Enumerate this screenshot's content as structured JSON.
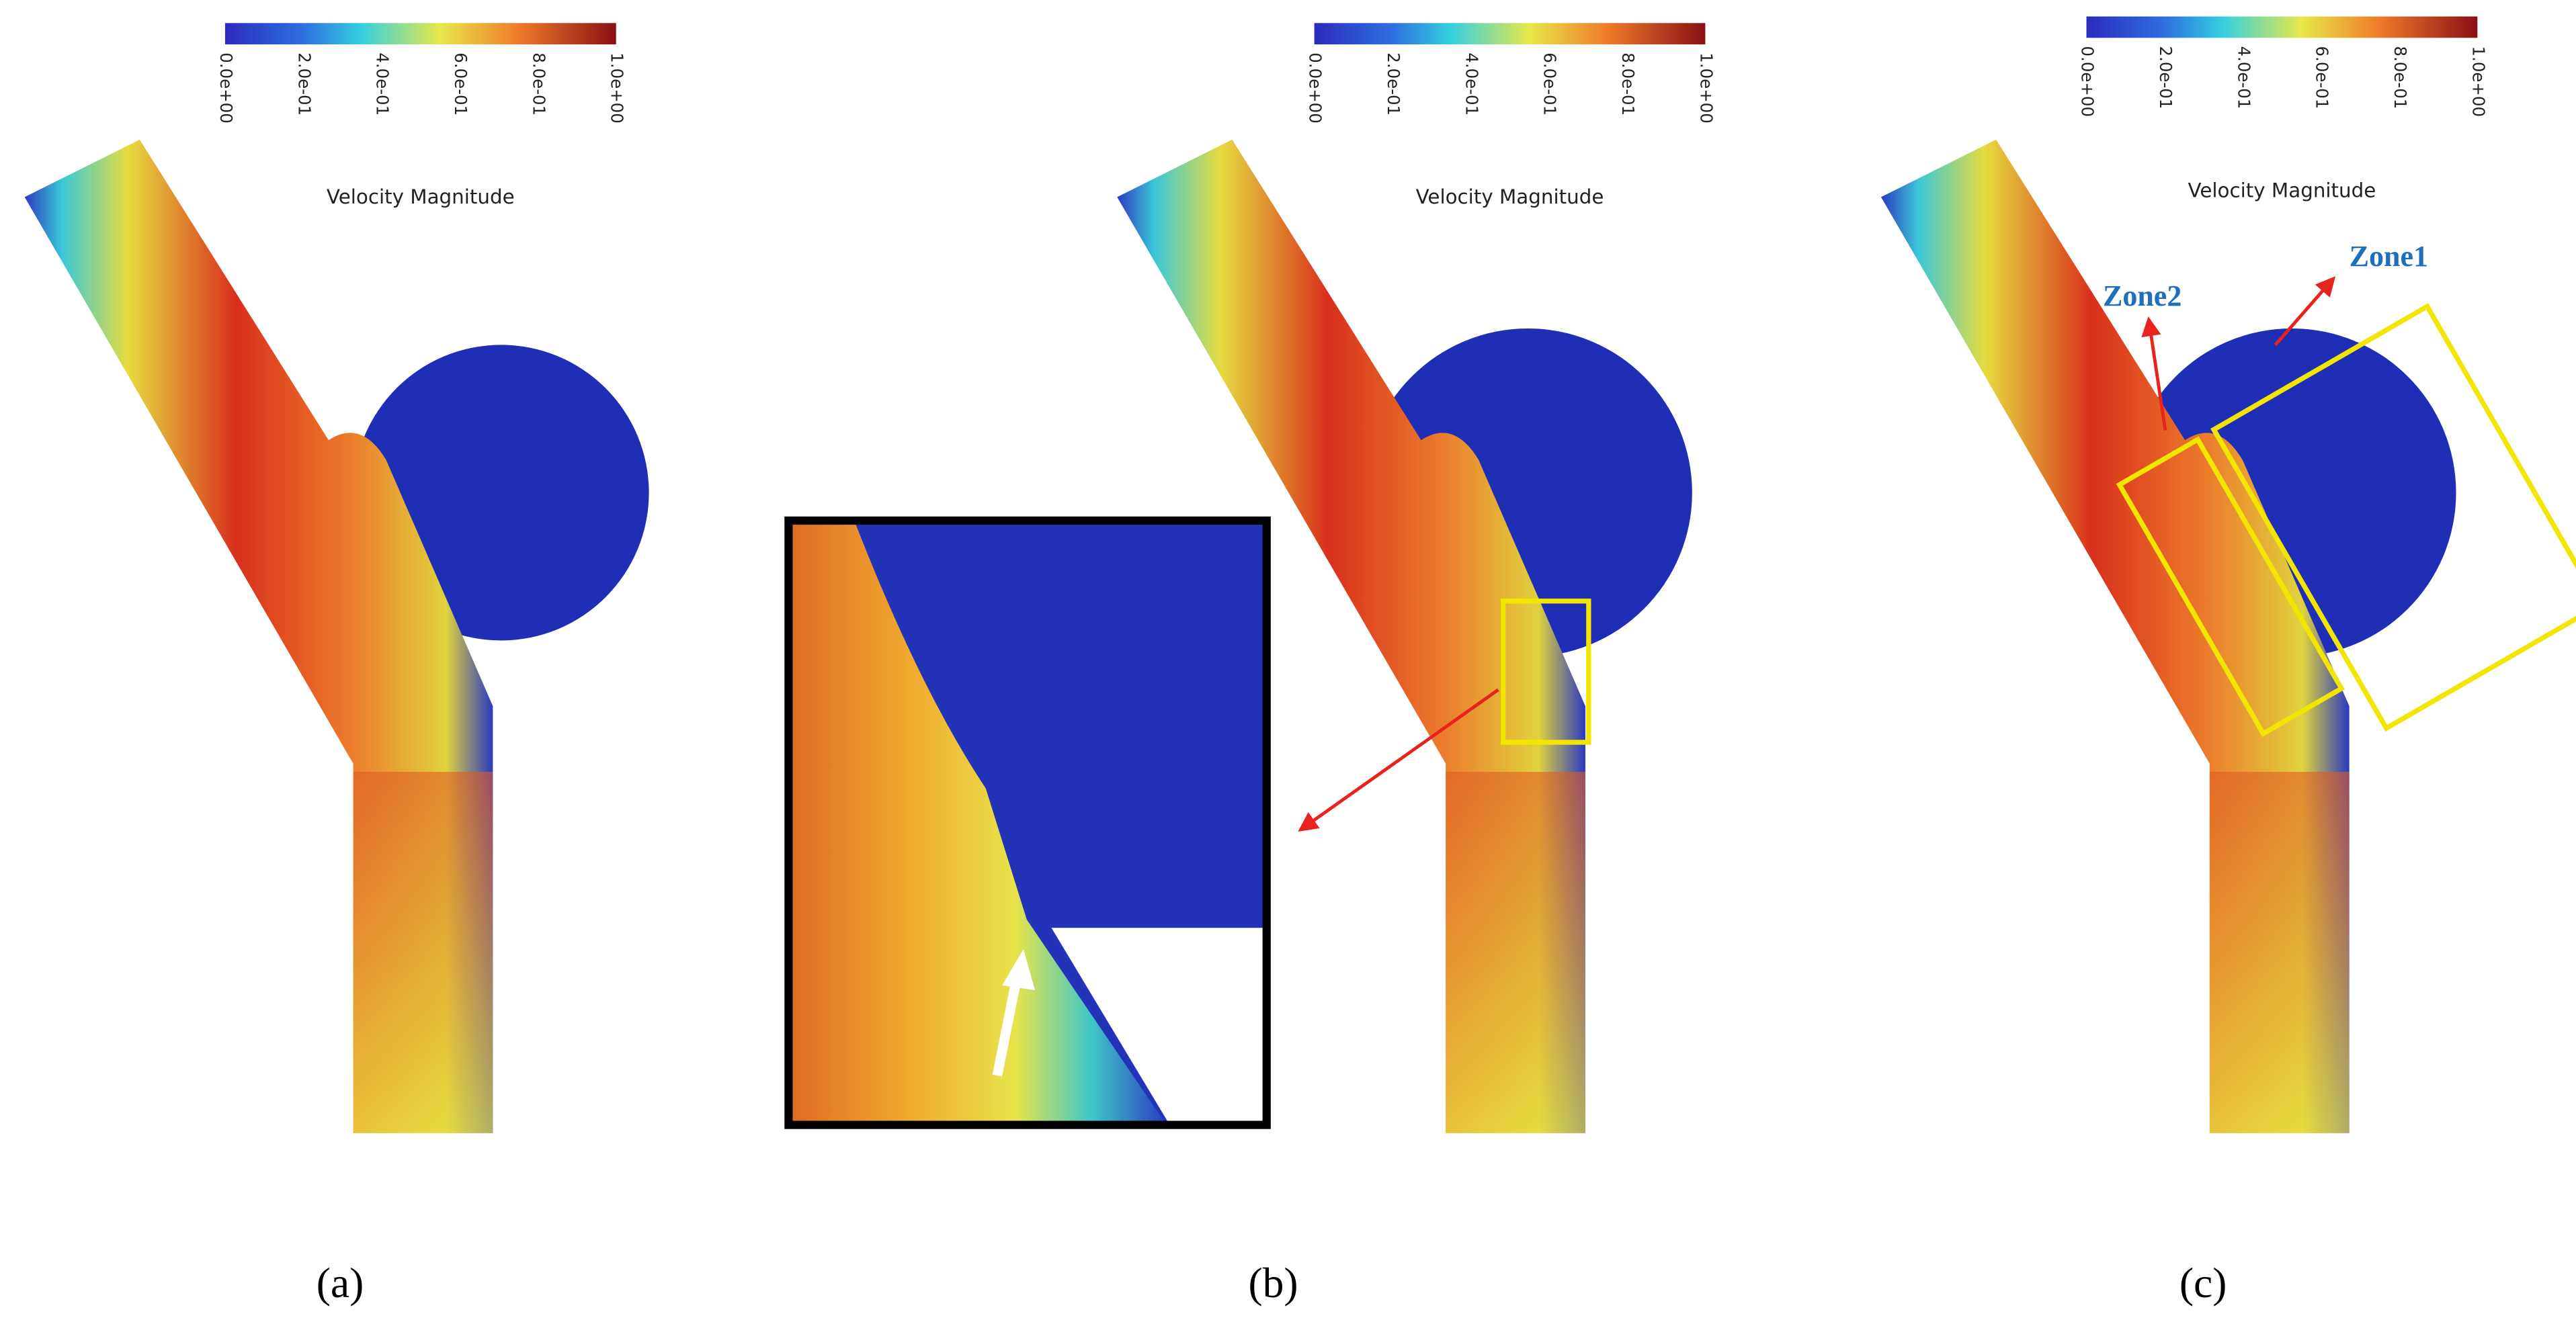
{
  "panels": [
    {
      "caption": "(a)",
      "colorbar": {
        "title": "Velocity Magnitude",
        "ticks": [
          "0.0e+00",
          "2.0e-01",
          "4.0e-01",
          "6.0e-01",
          "8.0e-01",
          "1.0e+00"
        ]
      }
    },
    {
      "caption": "(b)",
      "colorbar": {
        "title": "Velocity Magnitude",
        "ticks": [
          "0.0e+00",
          "2.0e-01",
          "4.0e-01",
          "6.0e-01",
          "8.0e-01",
          "1.0e+00"
        ]
      }
    },
    {
      "caption": "(c)",
      "colorbar": {
        "title": "Velocity Magnitude",
        "ticks": [
          "0.0e+00",
          "2.0e-01",
          "4.0e-01",
          "6.0e-01",
          "8.0e-01",
          "1.0e+00"
        ]
      },
      "zones": [
        "Zone1",
        "Zone2"
      ]
    }
  ]
}
